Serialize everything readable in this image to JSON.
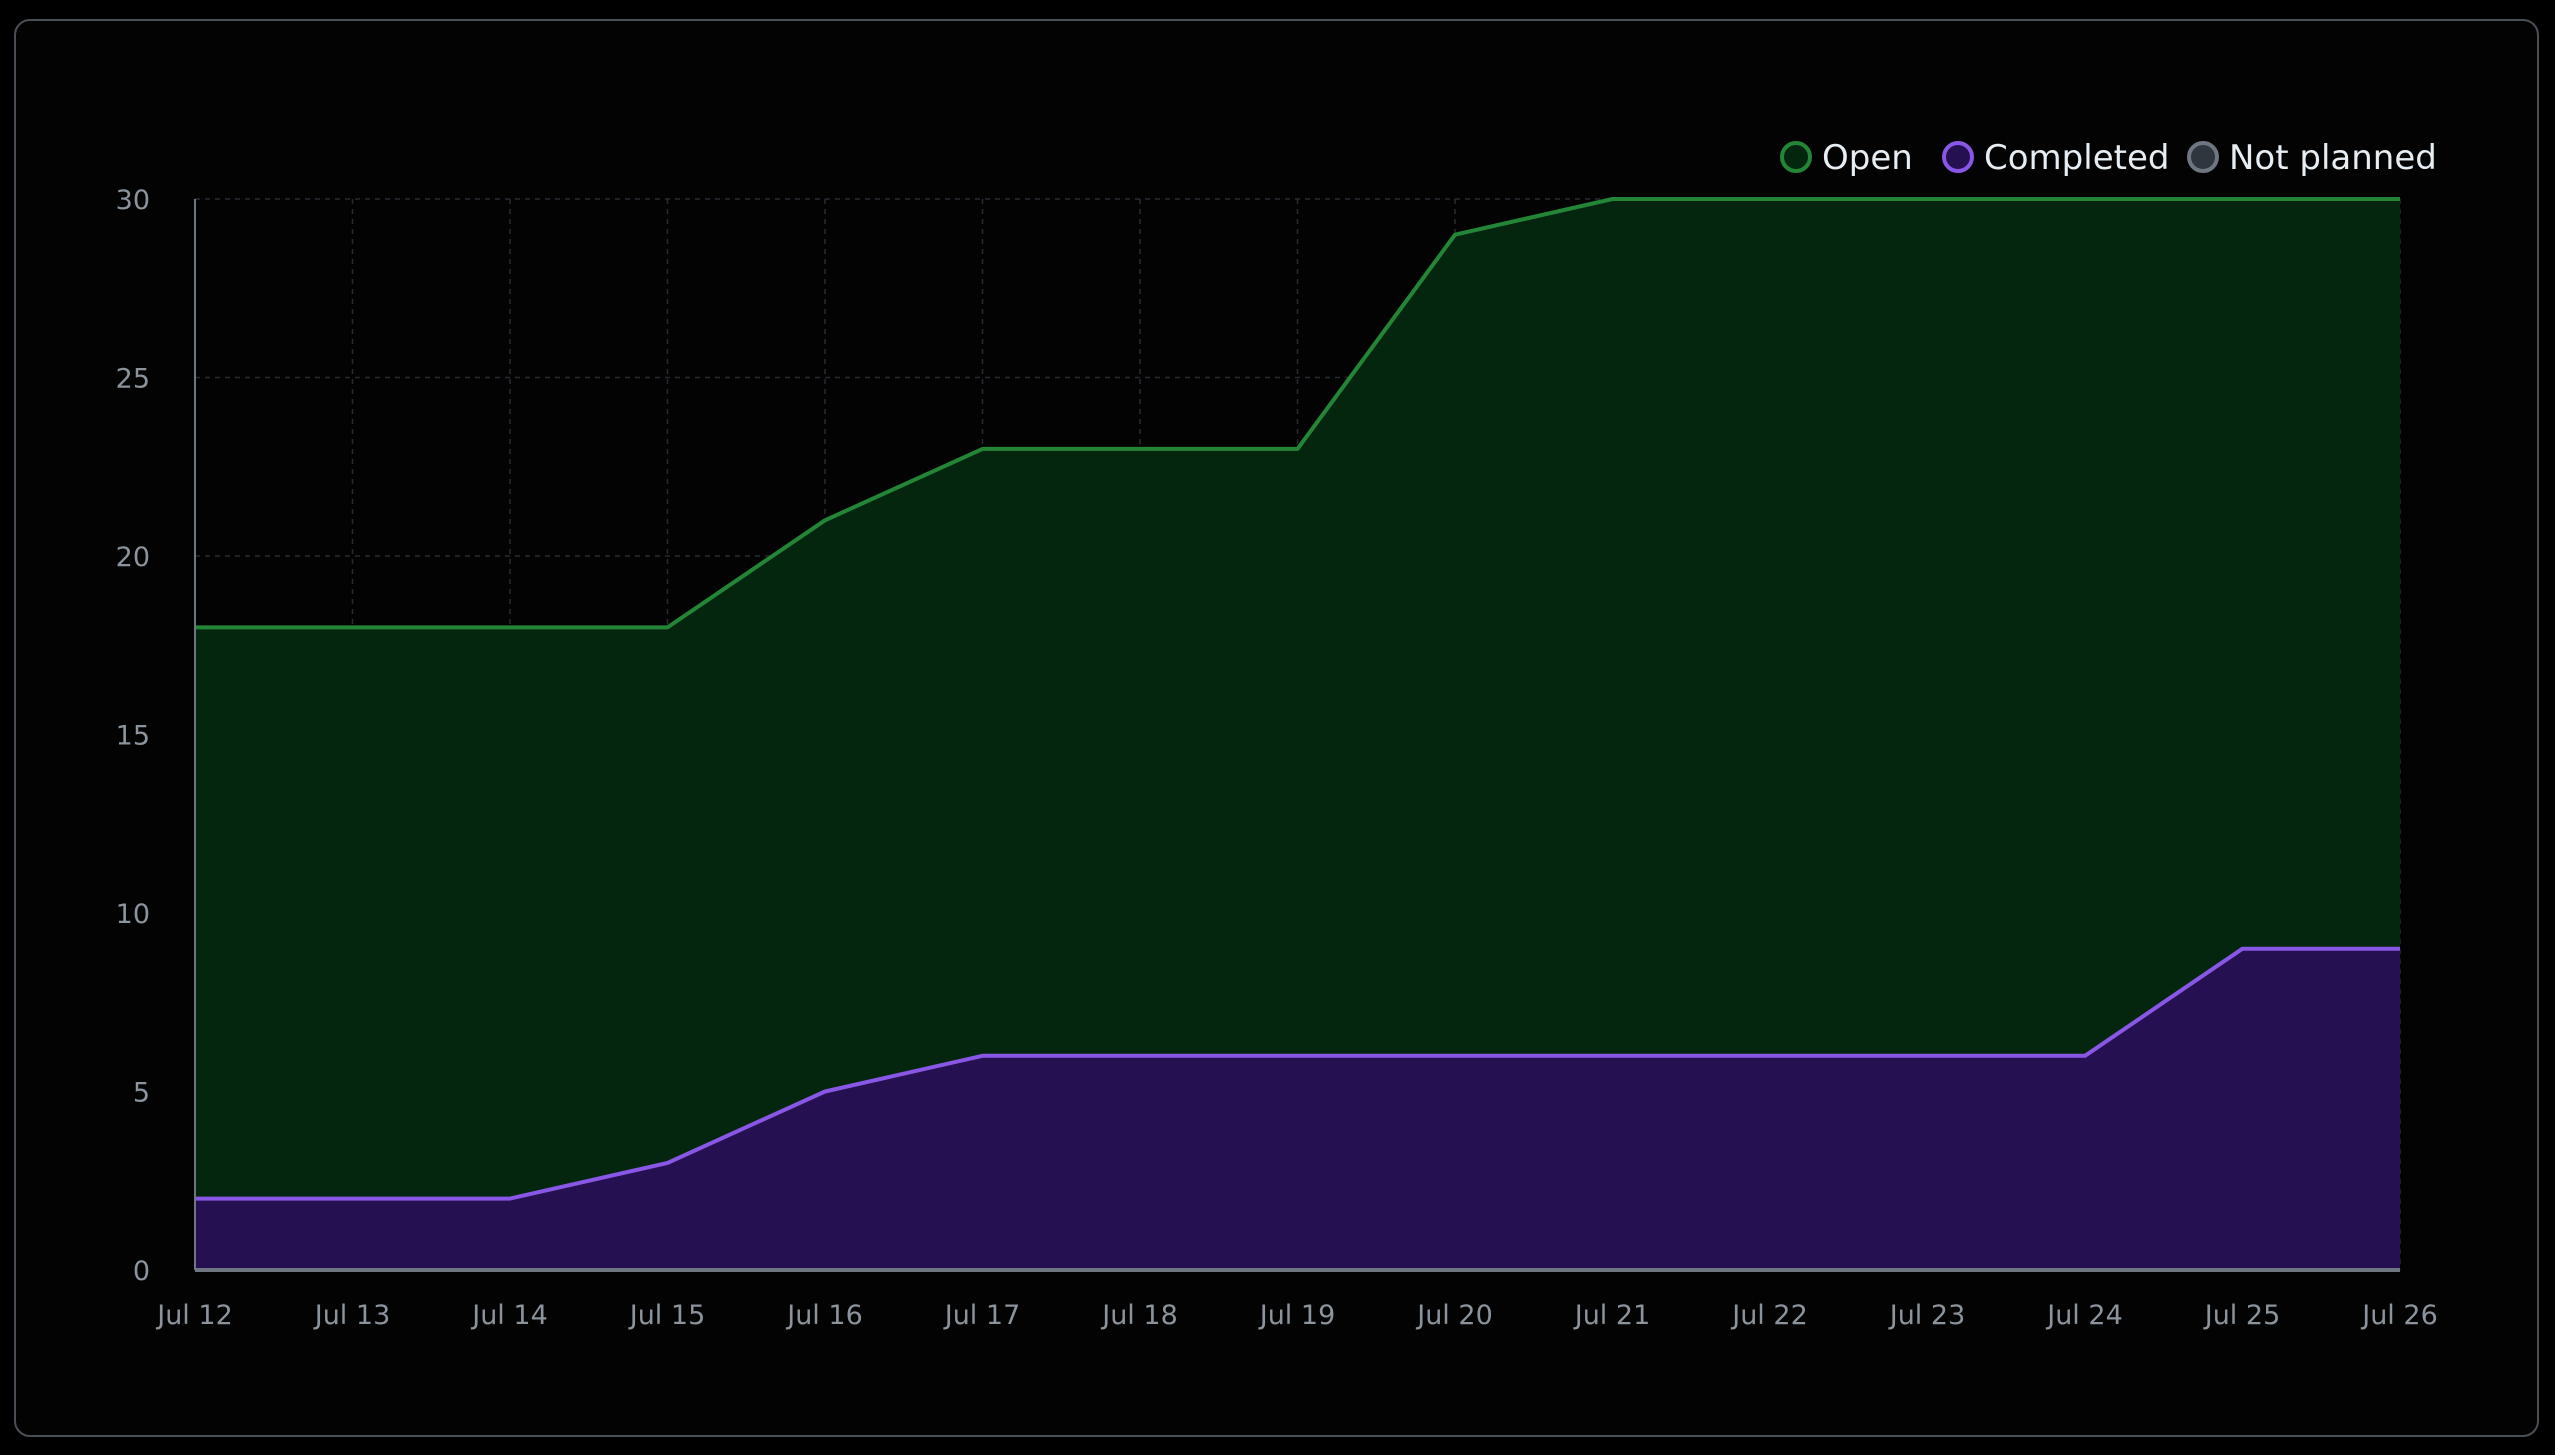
{
  "chart_data": {
    "type": "area",
    "x": [
      "Jul 12",
      "Jul 13",
      "Jul 14",
      "Jul 15",
      "Jul 16",
      "Jul 17",
      "Jul 18",
      "Jul 19",
      "Jul 20",
      "Jul 21",
      "Jul 22",
      "Jul 23",
      "Jul 24",
      "Jul 25",
      "Jul 26"
    ],
    "series": [
      {
        "name": "Open",
        "values": [
          18,
          18,
          18,
          18,
          21,
          23,
          23,
          23,
          29,
          30,
          30,
          30,
          30,
          30,
          30
        ],
        "color": "#238636",
        "fill": "#04260f"
      },
      {
        "name": "Completed",
        "values": [
          2,
          2,
          2,
          3,
          5,
          6,
          6,
          6,
          6,
          6,
          6,
          6,
          6,
          9,
          9
        ],
        "color": "#8957e5",
        "fill": "#251051"
      },
      {
        "name": "Not planned",
        "values": [
          0,
          0,
          0,
          0,
          0,
          0,
          0,
          0,
          0,
          0,
          0,
          0,
          0,
          0,
          0
        ],
        "color": "#6e7681",
        "fill": "#30363d"
      }
    ],
    "y_ticks": [
      0,
      5,
      10,
      15,
      20,
      25,
      30
    ],
    "ylim": [
      0,
      30
    ],
    "grid": true,
    "legend": "top-right"
  }
}
